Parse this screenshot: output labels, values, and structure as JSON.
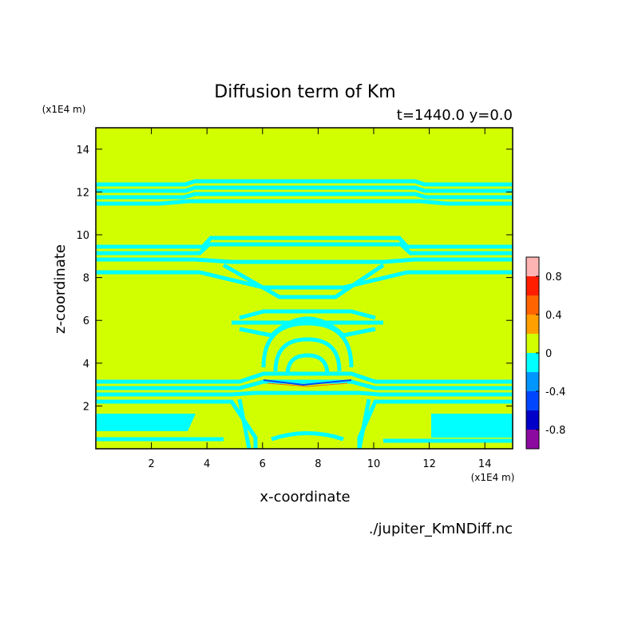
{
  "chart_data": {
    "type": "contour",
    "title": "Diffusion term of Km",
    "subtitle": "t=1440.0 y=0.0",
    "x_label": "x-coordinate",
    "y_label": "z-coordinate",
    "x_unit": "(x1E4 m)",
    "y_unit": "(x1E4 m)",
    "source": "./jupiter_KmNDiff.nc",
    "xlim": [
      0,
      15
    ],
    "ylim": [
      0,
      15
    ],
    "xticks": [
      2,
      4,
      6,
      8,
      10,
      12,
      14
    ],
    "yticks": [
      2,
      4,
      6,
      8,
      10,
      12,
      14
    ],
    "levels": [
      -1,
      -0.8,
      -0.6,
      -0.4,
      -0.2,
      0,
      0.2,
      0.4,
      0.6,
      0.8,
      1
    ],
    "colors": [
      "#8c0aa0",
      "#0000c8",
      "#0046ff",
      "#0096ff",
      "#00ffff",
      "#d2ff00",
      "#ffa000",
      "#ff6400",
      "#ff1e00",
      "#ffb4b4"
    ],
    "colorbar_ticks": [
      -0.8,
      -0.4,
      0,
      0.4,
      0.8
    ]
  }
}
